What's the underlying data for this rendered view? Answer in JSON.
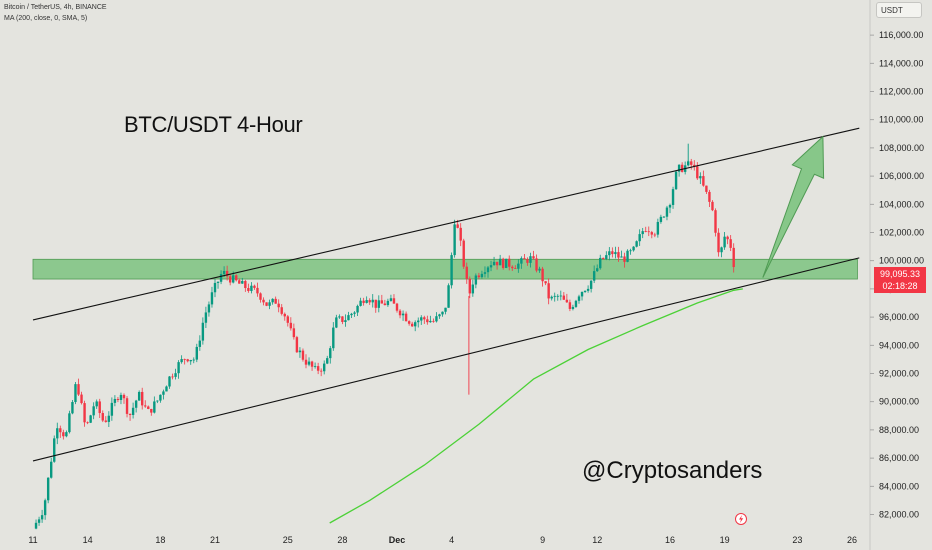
{
  "header": {
    "symbol_line": "Bitcoin / TetherUS, 4h, BINANCE",
    "indicator_line": "MA (200, close, 0, SMA, 5)"
  },
  "currency_button": "USDT",
  "price_tag": {
    "price": "99,095.33",
    "countdown": "02:18:28"
  },
  "annotation_title": "BTC/USDT 4-Hour",
  "watermark": "@Cryptosanders",
  "colors": {
    "up_candle": "#089981",
    "down_candle": "#f23645",
    "ma_line": "#4cd137",
    "support_zone": "#6fbf73",
    "arrow": "#6fbf73",
    "background": "#e4e4df"
  },
  "chart_data": {
    "type": "candlestick",
    "timeframe": "4h",
    "y_axis": {
      "min": 81000,
      "max": 117500,
      "ticks": [
        "82,000.00",
        "84,000.00",
        "86,000.00",
        "88,000.00",
        "90,000.00",
        "92,000.00",
        "94,000.00",
        "96,000.00",
        "98,000.00",
        "100,000.00",
        "102,000.00",
        "104,000.00",
        "106,000.00",
        "108,000.00",
        "110,000.00",
        "112,000.00",
        "114,000.00",
        "116,000.00"
      ]
    },
    "x_axis": {
      "ticks": [
        {
          "label": "11",
          "day": 0
        },
        {
          "label": "14",
          "day": 3
        },
        {
          "label": "18",
          "day": 7
        },
        {
          "label": "21",
          "day": 10
        },
        {
          "label": "25",
          "day": 14
        },
        {
          "label": "28",
          "day": 17
        },
        {
          "label": "Dec",
          "day": 20
        },
        {
          "label": "4",
          "day": 23
        },
        {
          "label": "9",
          "day": 28
        },
        {
          "label": "12",
          "day": 31
        },
        {
          "label": "16",
          "day": 35
        },
        {
          "label": "19",
          "day": 38
        },
        {
          "label": "23",
          "day": 42
        },
        {
          "label": "26",
          "day": 45
        }
      ]
    },
    "close_anchors": [
      [
        0,
        81000
      ],
      [
        0.6,
        82500
      ],
      [
        1.3,
        88500
      ],
      [
        1.8,
        87500
      ],
      [
        2.4,
        91500
      ],
      [
        2.9,
        88000
      ],
      [
        3.4,
        90000
      ],
      [
        3.9,
        88500
      ],
      [
        4.3,
        89500
      ],
      [
        4.8,
        90800
      ],
      [
        5.3,
        89000
      ],
      [
        5.8,
        90500
      ],
      [
        6.3,
        89200
      ],
      [
        6.8,
        90000
      ],
      [
        7.4,
        91500
      ],
      [
        7.9,
        92500
      ],
      [
        8.4,
        93200
      ],
      [
        8.9,
        93000
      ],
      [
        9.4,
        96000
      ],
      [
        9.9,
        97800
      ],
      [
        10.4,
        99200
      ],
      [
        10.9,
        98700
      ],
      [
        11.4,
        98300
      ],
      [
        11.9,
        98000
      ],
      [
        12.4,
        97700
      ],
      [
        12.9,
        96800
      ],
      [
        13.4,
        97200
      ],
      [
        13.9,
        96000
      ],
      [
        14.4,
        94000
      ],
      [
        14.9,
        93000
      ],
      [
        15.5,
        92200
      ],
      [
        16.1,
        92600
      ],
      [
        16.6,
        95700
      ],
      [
        17.2,
        95900
      ],
      [
        17.7,
        96500
      ],
      [
        18.3,
        97600
      ],
      [
        18.9,
        96800
      ],
      [
        19.6,
        97100
      ],
      [
        20.2,
        96400
      ],
      [
        20.8,
        95600
      ],
      [
        21.4,
        95900
      ],
      [
        22.0,
        95700
      ],
      [
        22.6,
        96300
      ],
      [
        22.95,
        99000
      ],
      [
        23.1,
        103200
      ],
      [
        23.4,
        101900
      ],
      [
        23.7,
        99500
      ],
      [
        23.95,
        97500
      ],
      [
        24.2,
        98700
      ],
      [
        24.7,
        99400
      ],
      [
        25.3,
        100000
      ],
      [
        25.9,
        99800
      ],
      [
        26.6,
        99700
      ],
      [
        27.3,
        100200
      ],
      [
        27.9,
        99100
      ],
      [
        28.4,
        97200
      ],
      [
        28.9,
        97500
      ],
      [
        29.5,
        96600
      ],
      [
        30.0,
        97700
      ],
      [
        30.6,
        98400
      ],
      [
        31.2,
        100000
      ],
      [
        31.8,
        100600
      ],
      [
        32.4,
        100100
      ],
      [
        33.0,
        100700
      ],
      [
        33.6,
        102400
      ],
      [
        34.2,
        102100
      ],
      [
        34.6,
        103200
      ],
      [
        35.0,
        104300
      ],
      [
        35.4,
        106400
      ],
      [
        35.8,
        106700
      ],
      [
        36.2,
        106800
      ],
      [
        36.6,
        105900
      ],
      [
        37.0,
        104700
      ],
      [
        37.4,
        103300
      ],
      [
        37.7,
        100100
      ],
      [
        38.0,
        101700
      ],
      [
        38.3,
        101300
      ],
      [
        38.6,
        99095
      ]
    ],
    "ma_200": {
      "name": "MA (200, close, 0, SMA, 5)",
      "points": [
        [
          16.3,
          81400
        ],
        [
          18.5,
          83000
        ],
        [
          21.5,
          85500
        ],
        [
          24.5,
          88400
        ],
        [
          27.5,
          91600
        ],
        [
          30.5,
          93700
        ],
        [
          33.5,
          95400
        ],
        [
          36.5,
          97000
        ],
        [
          38.5,
          97900
        ],
        [
          39.0,
          98000
        ]
      ]
    },
    "trend_channel": {
      "upper": [
        [
          0,
          95800
        ],
        [
          45.4,
          109400
        ]
      ],
      "lower": [
        [
          0,
          85800
        ],
        [
          45.4,
          100200
        ]
      ]
    },
    "support_zone": {
      "from_day": 0,
      "to_day": 45.3,
      "low": 98700,
      "high": 100100
    },
    "projection_arrow": {
      "from": [
        40.1,
        98800
      ],
      "to": [
        43.4,
        108800
      ]
    },
    "last_price": 99095.33
  }
}
